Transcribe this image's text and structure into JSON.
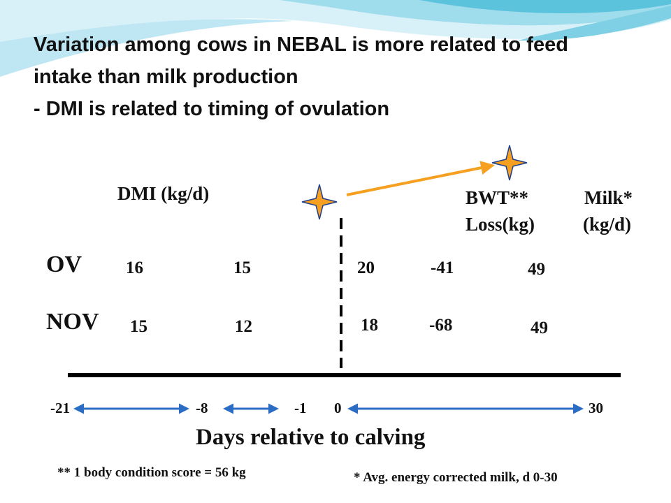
{
  "slide": {
    "title_lines": [
      "Variation among cows in NEBAL is more related to feed",
      "intake than milk production",
      "- DMI is related to timing of ovulation"
    ],
    "dmi_label": "DMI (kg/d)",
    "bwt_label_1": "BWT**",
    "bwt_label_2": "Loss(kg)",
    "milk_label_1": "Milk*",
    "milk_label_2": "(kg/d)",
    "rows": [
      {
        "label": "OV",
        "dmi_pre_21": "16",
        "dmi_pre_8": "15",
        "dmi_post": "20",
        "bwt_loss": "-41",
        "milk": "49"
      },
      {
        "label": "NOV",
        "dmi_pre_21": "15",
        "dmi_pre_8": "12",
        "dmi_post": "18",
        "bwt_loss": "-68",
        "milk": "49"
      }
    ],
    "ticks": [
      "-21",
      "-8",
      "-1",
      "0",
      "30"
    ],
    "axis_title": "Days relative to calving",
    "footnote_bcs": "** 1 body condition score = 56 kg",
    "footnote_milk": "* Avg. energy corrected milk, d 0-30",
    "colors": {
      "arrow_blue": "#2b6cc4",
      "arrow_orange": "#f5a020",
      "star_fill": "#f5a020",
      "star_stroke": "#1f3f8f",
      "wave_light": "#bfe6f3",
      "wave_mid": "#5cc3dc"
    }
  }
}
